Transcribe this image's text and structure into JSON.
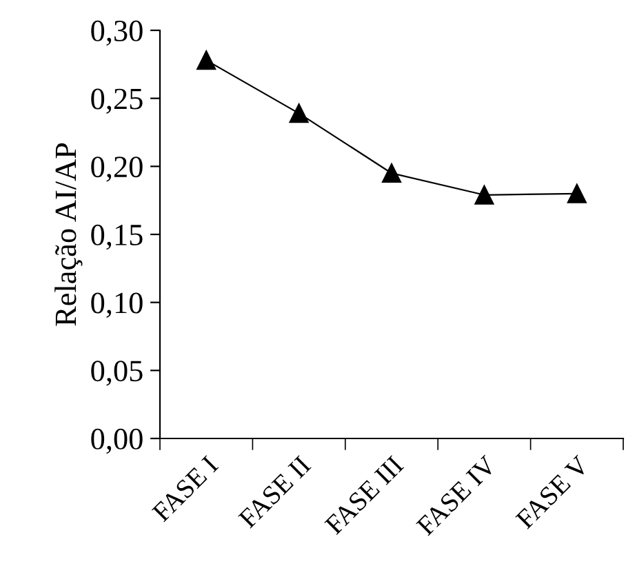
{
  "chart_data": {
    "type": "line",
    "ylabel": "Relação AI/AP",
    "categories": [
      "FASE I",
      "FASE II",
      "FASE III",
      "FASE IV",
      "FASE V"
    ],
    "values": [
      0.278,
      0.239,
      0.195,
      0.179,
      0.18
    ],
    "color": "#000000",
    "marker": "triangle",
    "line_style": "solid",
    "ylim": [
      0,
      0.3
    ],
    "yticks": [
      {
        "value": 0,
        "label": "0,00"
      },
      {
        "value": 0.05,
        "label": "0,05"
      },
      {
        "value": 0.1,
        "label": "0,10"
      },
      {
        "value": 0.15,
        "label": "0,15"
      },
      {
        "value": 0.2,
        "label": "0,20"
      },
      {
        "value": 0.25,
        "label": "0,25"
      },
      {
        "value": 0.3,
        "label": "0,30"
      }
    ],
    "grid": false
  }
}
